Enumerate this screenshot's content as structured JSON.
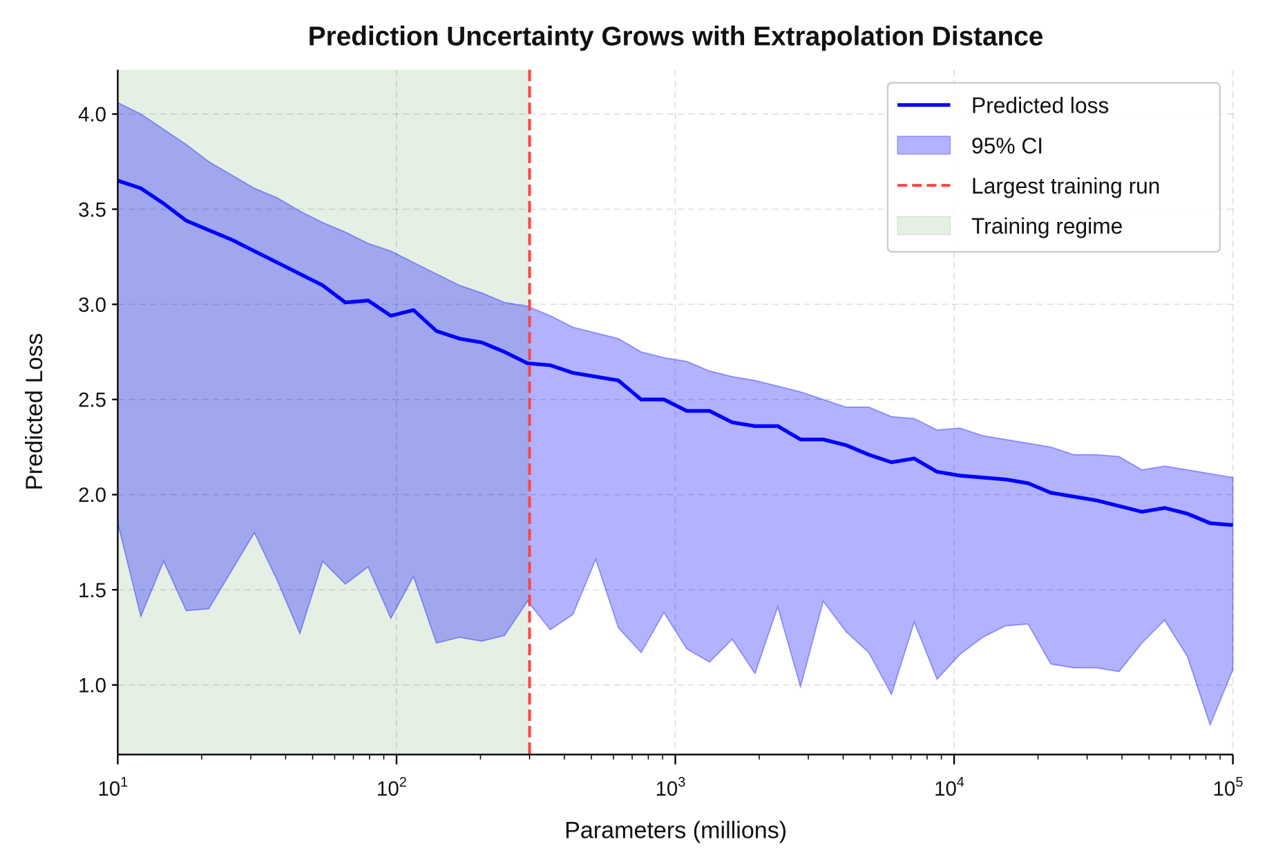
{
  "chart_data": {
    "type": "line",
    "title": "Prediction Uncertainty Grows with Extrapolation Distance",
    "xlabel": "Parameters (millions)",
    "ylabel": "Predicted Loss",
    "xscale": "log",
    "xlim": [
      10,
      100000
    ],
    "ylim": [
      0.634,
      4.233
    ],
    "grid": true,
    "legend_position": "top-right",
    "x_tick_labels": [
      {
        "base": "10",
        "exp": "1"
      },
      {
        "base": "10",
        "exp": "2"
      },
      {
        "base": "10",
        "exp": "3"
      },
      {
        "base": "10",
        "exp": "4"
      },
      {
        "base": "10",
        "exp": "5"
      }
    ],
    "x_ticks": [
      10,
      100,
      1000,
      10000,
      100000
    ],
    "y_ticks": [
      1.0,
      1.5,
      2.0,
      2.5,
      3.0,
      3.5,
      4.0
    ],
    "y_tick_labels": [
      "1.0",
      "1.5",
      "2.0",
      "2.5",
      "3.0",
      "3.5",
      "4.0"
    ],
    "x": [
      10,
      12.1,
      14.6,
      17.6,
      21.2,
      25.6,
      30.9,
      37.3,
      45.0,
      54.3,
      65.5,
      79.1,
      95.4,
      115,
      139,
      168,
      202,
      244,
      295,
      356,
      429,
      518,
      625,
      754,
      910,
      1099,
      1326,
      1600,
      1931,
      2330,
      2812,
      3393,
      4095,
      4942,
      5964,
      7197,
      8685,
      10481,
      12649,
      15264,
      18421,
      22230,
      26827,
      32375,
      39069,
      47149,
      56899,
      68665,
      82864,
      100000
    ],
    "series": [
      {
        "name": "Predicted loss",
        "color": "#0000ff",
        "values": [
          3.65,
          3.61,
          3.53,
          3.44,
          3.39,
          3.34,
          3.28,
          3.22,
          3.16,
          3.1,
          3.01,
          3.02,
          2.94,
          2.97,
          2.86,
          2.82,
          2.8,
          2.75,
          2.69,
          2.68,
          2.64,
          2.62,
          2.6,
          2.5,
          2.5,
          2.44,
          2.44,
          2.38,
          2.36,
          2.36,
          2.29,
          2.29,
          2.26,
          2.21,
          2.17,
          2.19,
          2.12,
          2.1,
          2.09,
          2.08,
          2.06,
          2.01,
          1.99,
          1.97,
          1.94,
          1.91,
          1.93,
          1.9,
          1.85,
          1.84
        ]
      },
      {
        "name": "95% CI",
        "color": "#b0b0ff",
        "type": "band",
        "upper": [
          4.06,
          4.0,
          3.92,
          3.84,
          3.75,
          3.68,
          3.61,
          3.56,
          3.49,
          3.43,
          3.38,
          3.32,
          3.28,
          3.22,
          3.16,
          3.1,
          3.06,
          3.01,
          2.99,
          2.94,
          2.88,
          2.85,
          2.82,
          2.75,
          2.72,
          2.7,
          2.65,
          2.62,
          2.6,
          2.57,
          2.54,
          2.5,
          2.46,
          2.46,
          2.41,
          2.4,
          2.34,
          2.35,
          2.31,
          2.29,
          2.27,
          2.25,
          2.21,
          2.21,
          2.2,
          2.13,
          2.15,
          2.13,
          2.11,
          2.09
        ],
        "lower": [
          1.85,
          1.36,
          1.65,
          1.39,
          1.4,
          1.6,
          1.8,
          1.55,
          1.27,
          1.65,
          1.53,
          1.62,
          1.35,
          1.57,
          1.22,
          1.25,
          1.23,
          1.26,
          1.44,
          1.29,
          1.37,
          1.66,
          1.3,
          1.17,
          1.38,
          1.19,
          1.12,
          1.24,
          1.06,
          1.41,
          0.99,
          1.44,
          1.28,
          1.17,
          0.95,
          1.33,
          1.03,
          1.16,
          1.25,
          1.31,
          1.32,
          1.11,
          1.09,
          1.09,
          1.07,
          1.22,
          1.34,
          1.15,
          0.79,
          1.08
        ]
      }
    ],
    "vline": {
      "name": "Largest training run",
      "x": 300,
      "color": "#ff4444",
      "style": "dashed"
    },
    "region": {
      "name": "Training regime",
      "x": [
        10,
        300
      ],
      "color": "#e5f0e5"
    },
    "legend": [
      "Predicted loss",
      "95% CI",
      "Largest training run",
      "Training regime"
    ]
  }
}
